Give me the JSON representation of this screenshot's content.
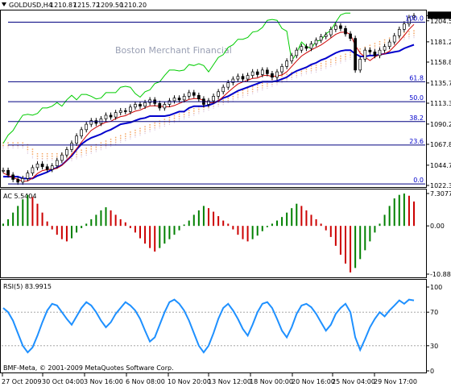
{
  "header": {
    "symbol": "GOLDUSD,H4",
    "open": "1210.87",
    "high": "1215.72",
    "low": "1209.50",
    "close": "1210.20"
  },
  "watermark": "Boston Merchant Financial",
  "copyright": "BMF-Meta, © 2001-2009 MetaQuotes Software Corp.",
  "colors": {
    "candle": "#000000",
    "price_line": "#cc0000",
    "kijun": "#0000cc",
    "chikou": "#00cc00",
    "cloud_up": "#f4a460",
    "cloud_down": "#d8bfd8",
    "fib": "#000080",
    "ac_up": "#008000",
    "ac_down": "#cc0000",
    "rsi": "#1e90ff"
  },
  "chart_data": [
    {
      "type": "candlestick",
      "title": "GOLDUSD,H4",
      "ylim": [
        1022.3,
        1215
      ],
      "y_ticks": [
        "1210.20",
        "1204.50",
        "1181.20",
        "1158.80",
        "1135.70",
        "1113.30",
        "1090.20",
        "1067.80",
        "1044.70",
        "1022.30"
      ],
      "fib_levels": [
        {
          "label": "100.0",
          "value": 1203
        },
        {
          "label": "61.8",
          "value": 1137
        },
        {
          "label": "50.0",
          "value": 1115
        },
        {
          "label": "38.2",
          "value": 1093
        },
        {
          "label": "23.6",
          "value": 1067
        },
        {
          "label": "0.0",
          "value": 1024
        }
      ],
      "close": [
        1039,
        1034,
        1029,
        1026,
        1030,
        1036,
        1042,
        1046,
        1043,
        1040,
        1044,
        1050,
        1056,
        1062,
        1069,
        1077,
        1084,
        1090,
        1094,
        1091,
        1096,
        1100,
        1098,
        1103,
        1105,
        1104,
        1109,
        1112,
        1110,
        1114,
        1117,
        1113,
        1108,
        1112,
        1116,
        1119,
        1117,
        1121,
        1125,
        1122,
        1118,
        1112,
        1116,
        1121,
        1126,
        1131,
        1136,
        1140,
        1143,
        1140,
        1144,
        1148,
        1145,
        1150,
        1146,
        1142,
        1148,
        1154,
        1160,
        1166,
        1172,
        1176,
        1174,
        1179,
        1183,
        1187,
        1189,
        1195,
        1199,
        1196,
        1190,
        1185,
        1150,
        1162,
        1172,
        1170,
        1166,
        1172,
        1176,
        1181,
        1188,
        1195,
        1201,
        1208,
        1210
      ],
      "kijun": [
        1032,
        1032,
        1032,
        1032,
        1030,
        1030,
        1030,
        1033,
        1035,
        1037,
        1040,
        1042,
        1045,
        1050,
        1055,
        1062,
        1068,
        1072,
        1075,
        1077,
        1079,
        1082,
        1084,
        1087,
        1090,
        1091,
        1092,
        1094,
        1096,
        1097,
        1099,
        1099,
        1099,
        1099,
        1100,
        1102,
        1104,
        1104,
        1108,
        1110,
        1110,
        1110,
        1111,
        1113,
        1116,
        1119,
        1121,
        1124,
        1127,
        1129,
        1131,
        1133,
        1135,
        1137,
        1137,
        1137,
        1138,
        1140,
        1142,
        1146,
        1149,
        1151,
        1153,
        1156,
        1158,
        1161,
        1163,
        1166,
        1169,
        1171,
        1172,
        1172,
        1168,
        1165,
        1165,
        1166,
        1166,
        1167,
        1168,
        1169,
        1170,
        1171,
        1174,
        1176,
        1178
      ],
      "cloud_a": [
        1070,
        1070,
        1070,
        1070,
        1070,
        1068,
        1063,
        1058,
        1058,
        1058,
        1058,
        1058,
        1058,
        1058,
        1058,
        1060,
        1062,
        1064,
        1066,
        1068,
        1070,
        1072,
        1074,
        1076,
        1078,
        1080,
        1082,
        1084,
        1086,
        1088,
        1090,
        1092,
        1094,
        1096,
        1098,
        1100,
        1102,
        1104,
        1106,
        1108,
        1110,
        1112,
        1114,
        1116,
        1118,
        1120,
        1122,
        1124,
        1126,
        1128,
        1130,
        1132,
        1134,
        1136,
        1138,
        1140,
        1142,
        1144,
        1146,
        1148,
        1150,
        1152,
        1154,
        1155,
        1156,
        1158,
        1160,
        1162,
        1164,
        1166,
        1168,
        1170,
        1172,
        1174,
        1176,
        1178,
        1180,
        1182,
        1184,
        1186,
        1188,
        1190,
        1192,
        1193,
        1194
      ],
      "cloud_b": [
        1066,
        1066,
        1066,
        1066,
        1066,
        1060,
        1055,
        1052,
        1052,
        1052,
        1052,
        1052,
        1052,
        1052,
        1052,
        1054,
        1056,
        1058,
        1060,
        1062,
        1064,
        1066,
        1068,
        1070,
        1072,
        1074,
        1076,
        1078,
        1080,
        1082,
        1084,
        1086,
        1088,
        1090,
        1092,
        1094,
        1096,
        1098,
        1100,
        1102,
        1104,
        1106,
        1108,
        1110,
        1112,
        1114,
        1116,
        1118,
        1120,
        1122,
        1124,
        1126,
        1128,
        1130,
        1132,
        1134,
        1136,
        1138,
        1140,
        1142,
        1144,
        1146,
        1148,
        1149,
        1150,
        1152,
        1154,
        1156,
        1158,
        1160,
        1162,
        1164,
        1166,
        1168,
        1170,
        1172,
        1174,
        1176,
        1178,
        1180,
        1182,
        1184,
        1186,
        1187,
        1188
      ]
    },
    {
      "type": "bar",
      "title": "AC 5.5404",
      "ylim": [
        -10.8884,
        7.3077
      ],
      "y_ticks": [
        "7.3077",
        "0.00",
        "-10.8884"
      ],
      "values": [
        0.5,
        1.5,
        3,
        4.5,
        6,
        7,
        6.5,
        5,
        3,
        1,
        -0.8,
        -2,
        -3,
        -3.5,
        -2.8,
        -1.5,
        -0.5,
        0.5,
        1.5,
        2.5,
        3.5,
        4.2,
        3.5,
        2.5,
        1.5,
        0.8,
        -0.5,
        -1.5,
        -2.8,
        -4,
        -5,
        -5.8,
        -5,
        -4,
        -3,
        -2,
        -1,
        0.3,
        1.2,
        2.5,
        3.5,
        4.5,
        4,
        3.2,
        2.2,
        1.2,
        0.5,
        -0.8,
        -2,
        -3,
        -3.5,
        -3,
        -2.2,
        -1.2,
        -0.3,
        0.5,
        1.2,
        2,
        3,
        4,
        5,
        4.5,
        3.5,
        2.5,
        1.5,
        0.5,
        -1,
        -2.5,
        -4.5,
        -6.5,
        -8.5,
        -10.5,
        -9.5,
        -7.5,
        -5.5,
        -3.5,
        -1.5,
        0.5,
        2.5,
        4.5,
        6.2,
        7,
        7.3,
        6.8,
        5.5
      ]
    },
    {
      "type": "line",
      "title": "RSI(5) 83.9915",
      "ylim": [
        0,
        100
      ],
      "y_ticks": [
        "100",
        "70",
        "30",
        "0"
      ],
      "values": [
        75,
        70,
        60,
        45,
        30,
        22,
        28,
        42,
        58,
        72,
        80,
        78,
        70,
        62,
        55,
        65,
        75,
        82,
        78,
        70,
        60,
        52,
        58,
        68,
        75,
        82,
        78,
        72,
        62,
        48,
        35,
        40,
        55,
        70,
        82,
        85,
        80,
        72,
        60,
        45,
        30,
        22,
        30,
        45,
        62,
        75,
        80,
        72,
        62,
        50,
        42,
        55,
        70,
        80,
        82,
        75,
        62,
        48,
        40,
        52,
        68,
        78,
        80,
        76,
        68,
        58,
        48,
        55,
        68,
        75,
        80,
        70,
        40,
        25,
        38,
        52,
        62,
        70,
        65,
        72,
        78,
        84,
        80,
        85,
        84
      ]
    }
  ],
  "x_labels": [
    "27 Oct 2009",
    "30 Oct 04:00",
    "3 Nov 16:00",
    "6 Nov 08:00",
    "10 Nov 20:00",
    "13 Nov 12:00",
    "18 Nov 00:00",
    "20 Nov 16:00",
    "25 Nov 04:00",
    "29 Nov 17:00"
  ]
}
